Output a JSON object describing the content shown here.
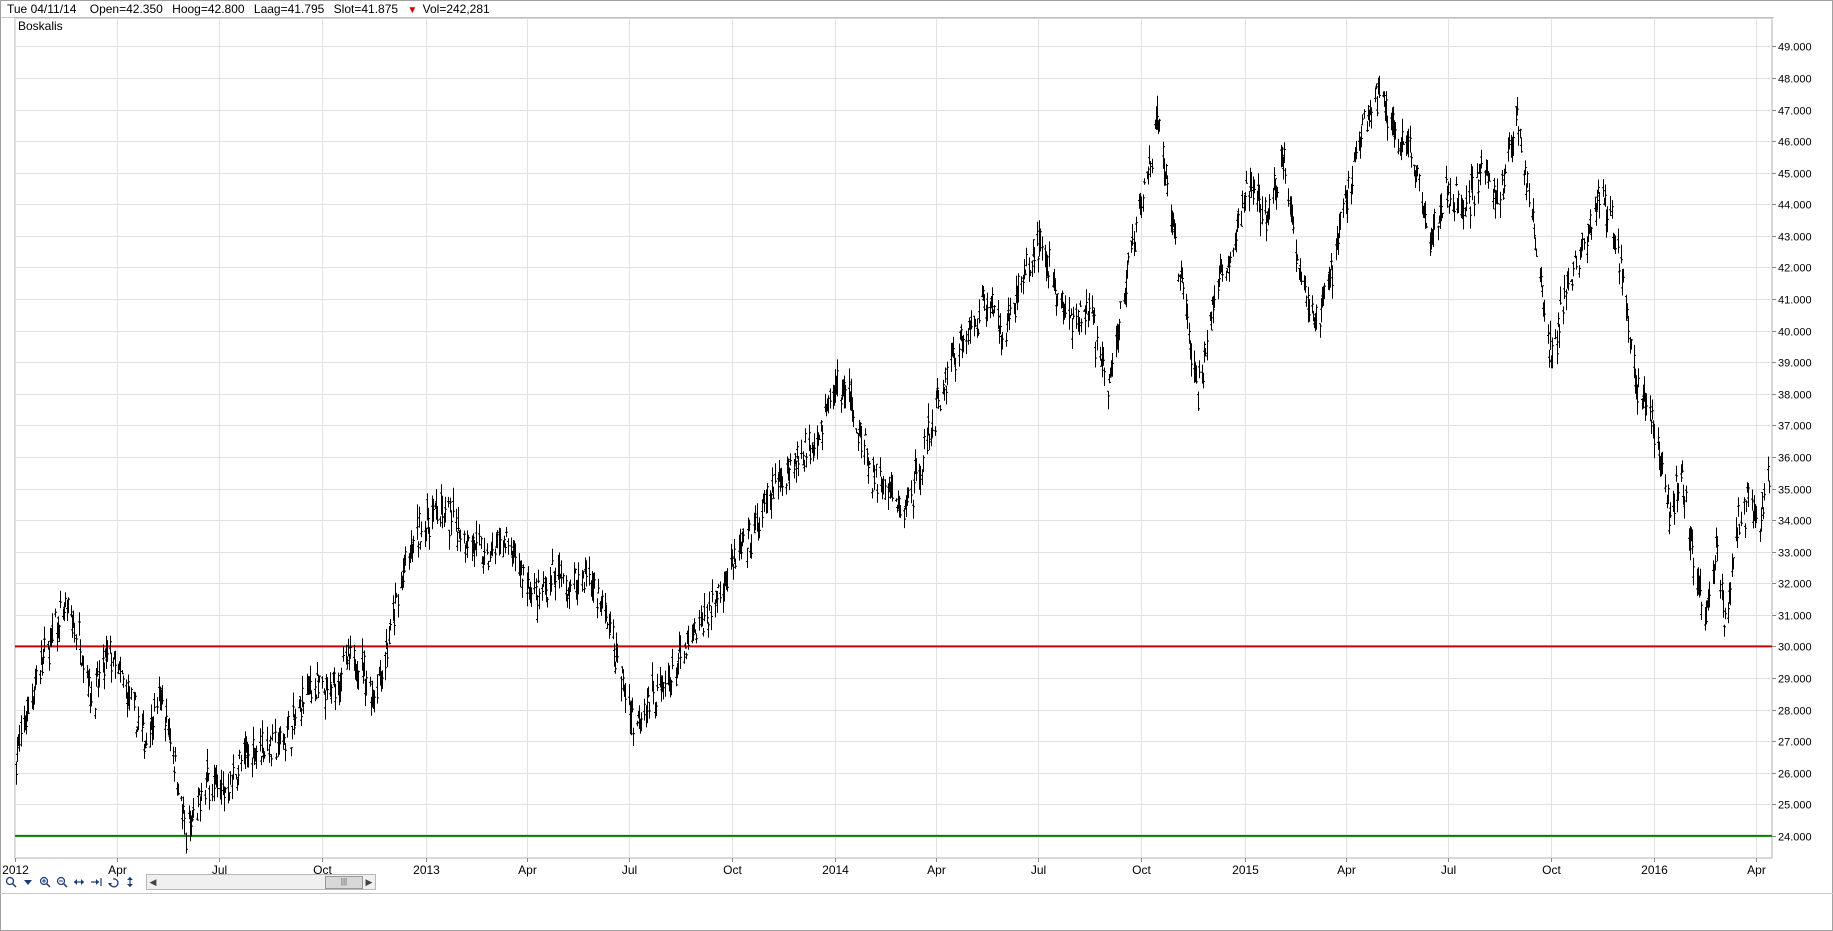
{
  "infobar": {
    "date": "Tue 04/11/14",
    "open": "Open=42.350",
    "high": "Hoog=42.800",
    "low": "Laag=41.795",
    "close": "Slot=41.875",
    "volume": "Vol=242,281",
    "down_color": "#cc0000"
  },
  "chart_data": {
    "type": "ohlc",
    "title": "Boskalis",
    "y_range": [
      23.3,
      49.9
    ],
    "y_ticks": [
      "24.000",
      "25.000",
      "26.000",
      "27.000",
      "28.000",
      "29.000",
      "30.000",
      "31.000",
      "32.000",
      "33.000",
      "34.000",
      "35.000",
      "36.000",
      "37.000",
      "38.000",
      "39.000",
      "40.000",
      "41.000",
      "42.000",
      "43.000",
      "44.000",
      "45.000",
      "46.000",
      "47.000",
      "48.000",
      "49.000"
    ],
    "x_range": [
      "2012-01-01",
      "2016-04-15"
    ],
    "x_ticks": [
      {
        "label": "2012",
        "date": "2012-01-01"
      },
      {
        "label": "Apr",
        "date": "2012-04-01"
      },
      {
        "label": "Jul",
        "date": "2012-07-01"
      },
      {
        "label": "Oct",
        "date": "2012-10-01"
      },
      {
        "label": "2013",
        "date": "2013-01-01"
      },
      {
        "label": "Apr",
        "date": "2013-04-01"
      },
      {
        "label": "Jul",
        "date": "2013-07-01"
      },
      {
        "label": "Oct",
        "date": "2013-10-01"
      },
      {
        "label": "2014",
        "date": "2014-01-01"
      },
      {
        "label": "Apr",
        "date": "2014-04-01"
      },
      {
        "label": "Jul",
        "date": "2014-07-01"
      },
      {
        "label": "Oct",
        "date": "2014-10-01"
      },
      {
        "label": "2015",
        "date": "2015-01-01"
      },
      {
        "label": "Apr",
        "date": "2015-04-01"
      },
      {
        "label": "Jul",
        "date": "2015-07-01"
      },
      {
        "label": "Oct",
        "date": "2015-10-01"
      },
      {
        "label": "2016",
        "date": "2016-01-01"
      },
      {
        "label": "Apr",
        "date": "2016-04-01"
      }
    ],
    "grid": true,
    "horizontal_lines": [
      {
        "value": 30.0,
        "color": "#cc0000"
      },
      {
        "value": 24.0,
        "color": "#008000"
      }
    ],
    "price_path": [
      [
        "2012-01-02",
        26.5
      ],
      [
        "2012-01-20",
        29.0
      ],
      [
        "2012-02-05",
        30.5
      ],
      [
        "2012-02-15",
        31.2
      ],
      [
        "2012-02-28",
        30.2
      ],
      [
        "2012-03-10",
        28.3
      ],
      [
        "2012-03-25",
        29.8
      ],
      [
        "2012-04-10",
        28.5
      ],
      [
        "2012-04-25",
        27.0
      ],
      [
        "2012-05-10",
        28.4
      ],
      [
        "2012-05-22",
        26.5
      ],
      [
        "2012-06-01",
        24.0
      ],
      [
        "2012-06-10",
        24.6
      ],
      [
        "2012-06-20",
        25.8
      ],
      [
        "2012-07-05",
        25.4
      ],
      [
        "2012-07-20",
        26.3
      ],
      [
        "2012-08-05",
        26.9
      ],
      [
        "2012-08-20",
        26.8
      ],
      [
        "2012-09-05",
        27.5
      ],
      [
        "2012-09-20",
        28.8
      ],
      [
        "2012-10-05",
        28.4
      ],
      [
        "2012-10-20",
        29.3
      ],
      [
        "2012-11-01",
        29.6
      ],
      [
        "2012-11-15",
        28.5
      ],
      [
        "2012-11-25",
        29.5
      ],
      [
        "2012-12-10",
        32.0
      ],
      [
        "2012-12-25",
        33.6
      ],
      [
        "2013-01-10",
        34.3
      ],
      [
        "2013-01-25",
        34.0
      ],
      [
        "2013-02-10",
        33.3
      ],
      [
        "2013-02-25",
        32.7
      ],
      [
        "2013-03-10",
        33.4
      ],
      [
        "2013-03-25",
        32.5
      ],
      [
        "2013-04-10",
        31.4
      ],
      [
        "2013-04-25",
        32.3
      ],
      [
        "2013-05-10",
        31.8
      ],
      [
        "2013-05-25",
        32.4
      ],
      [
        "2013-06-10",
        31.0
      ],
      [
        "2013-06-25",
        29.0
      ],
      [
        "2013-07-05",
        27.6
      ],
      [
        "2013-07-20",
        28.4
      ],
      [
        "2013-08-05",
        28.8
      ],
      [
        "2013-08-20",
        29.8
      ],
      [
        "2013-09-05",
        30.8
      ],
      [
        "2013-09-20",
        31.8
      ],
      [
        "2013-10-05",
        32.8
      ],
      [
        "2013-10-20",
        33.5
      ],
      [
        "2013-11-05",
        34.8
      ],
      [
        "2013-11-20",
        35.7
      ],
      [
        "2013-12-05",
        36.2
      ],
      [
        "2013-12-20",
        37.0
      ],
      [
        "2014-01-01",
        38.3
      ],
      [
        "2014-01-15",
        37.8
      ],
      [
        "2014-02-01",
        35.5
      ],
      [
        "2014-02-15",
        35.0
      ],
      [
        "2014-03-01",
        34.2
      ],
      [
        "2014-03-15",
        35.4
      ],
      [
        "2014-04-01",
        37.5
      ],
      [
        "2014-04-15",
        39.2
      ],
      [
        "2014-05-01",
        40.0
      ],
      [
        "2014-05-15",
        41.0
      ],
      [
        "2014-06-01",
        40.0
      ],
      [
        "2014-06-15",
        41.5
      ],
      [
        "2014-07-01",
        42.8
      ],
      [
        "2014-07-15",
        41.5
      ],
      [
        "2014-08-01",
        40.0
      ],
      [
        "2014-08-15",
        40.8
      ],
      [
        "2014-09-01",
        38.0
      ],
      [
        "2014-09-15",
        41.3
      ],
      [
        "2014-10-01",
        44.0
      ],
      [
        "2014-10-15",
        46.5
      ],
      [
        "2014-11-04",
        41.9
      ],
      [
        "2014-11-20",
        38.0
      ],
      [
        "2014-12-05",
        41.0
      ],
      [
        "2014-12-20",
        42.5
      ],
      [
        "2015-01-05",
        44.6
      ],
      [
        "2015-01-20",
        43.5
      ],
      [
        "2015-02-05",
        45.5
      ],
      [
        "2015-02-20",
        41.8
      ],
      [
        "2015-03-05",
        40.0
      ],
      [
        "2015-03-20",
        42.0
      ],
      [
        "2015-04-01",
        44.2
      ],
      [
        "2015-04-15",
        46.2
      ],
      [
        "2015-05-01",
        47.6
      ],
      [
        "2015-05-15",
        46.3
      ],
      [
        "2015-06-01",
        45.3
      ],
      [
        "2015-06-15",
        43.0
      ],
      [
        "2015-07-01",
        44.4
      ],
      [
        "2015-07-15",
        43.8
      ],
      [
        "2015-08-01",
        45.2
      ],
      [
        "2015-08-15",
        44.0
      ],
      [
        "2015-09-01",
        46.8
      ],
      [
        "2015-09-15",
        43.3
      ],
      [
        "2015-10-01",
        39.0
      ],
      [
        "2015-10-15",
        41.4
      ],
      [
        "2015-11-01",
        42.8
      ],
      [
        "2015-11-15",
        44.5
      ],
      [
        "2015-12-01",
        42.4
      ],
      [
        "2015-12-15",
        38.5
      ],
      [
        "2016-01-01",
        37.0
      ],
      [
        "2016-01-15",
        34.0
      ],
      [
        "2016-01-25",
        35.6
      ],
      [
        "2016-02-05",
        32.6
      ],
      [
        "2016-02-15",
        31.0
      ],
      [
        "2016-02-25",
        33.0
      ],
      [
        "2016-03-05",
        30.6
      ],
      [
        "2016-03-15",
        33.8
      ],
      [
        "2016-03-25",
        34.5
      ],
      [
        "2016-04-05",
        34.2
      ],
      [
        "2016-04-12",
        35.2
      ]
    ]
  }
}
